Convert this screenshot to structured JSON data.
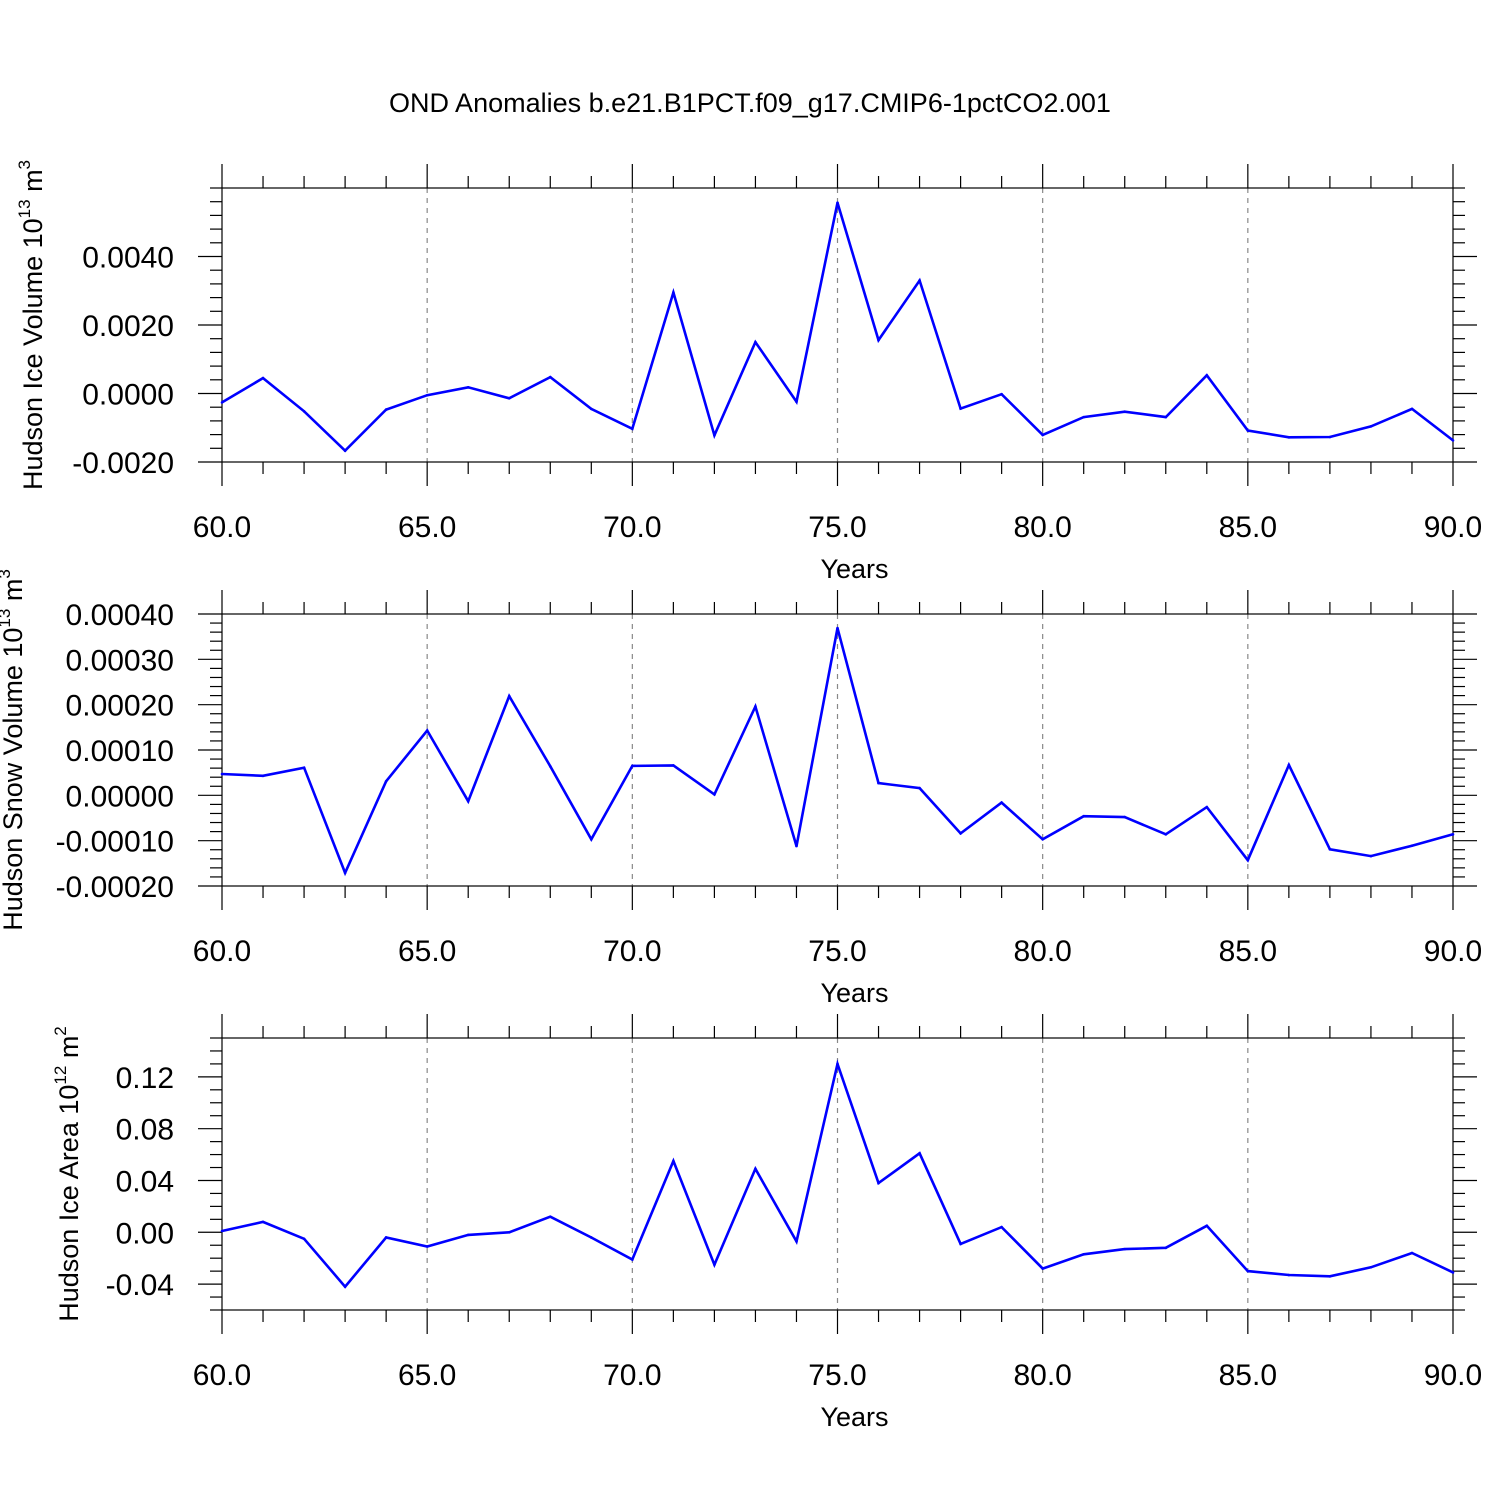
{
  "title": "OND Anomalies b.e21.B1PCT.f09_g17.CMIP6-1pctCO2.001",
  "line_color": "#0000ff",
  "axis_color": "#000000",
  "grid_color": "#888888",
  "chart_data": [
    {
      "type": "line",
      "ylabel": "Hudson Ice Volume",
      "ylabel_unit": {
        "base": "10",
        "exp": "13",
        "unit": "m",
        "unit_exp": "3"
      },
      "xlabel": "Years",
      "xlim": [
        60,
        90
      ],
      "ylim": [
        -0.002,
        0.006
      ],
      "xticks": [
        60,
        65,
        70,
        75,
        80,
        85,
        90
      ],
      "xtick_labels": [
        "60.0",
        "65.0",
        "70.0",
        "75.0",
        "80.0",
        "85.0",
        "90.0"
      ],
      "yticks": [
        -0.002,
        0.0,
        0.002,
        0.004
      ],
      "ytick_labels": [
        "-0.0020",
        "0.0000",
        "0.0020",
        "0.0040"
      ],
      "yminor_step": 0.0004,
      "grid": "vertical dashed at labeled x ticks",
      "x": [
        60,
        61,
        62,
        63,
        64,
        65,
        66,
        67,
        68,
        69,
        70,
        71,
        72,
        73,
        74,
        75,
        76,
        77,
        78,
        79,
        80,
        81,
        82,
        83,
        84,
        85,
        86,
        87,
        88,
        89,
        90
      ],
      "y": [
        -0.00026,
        0.00045,
        -0.00052,
        -0.00167,
        -0.00047,
        -5e-05,
        0.00018,
        -0.00014,
        0.00048,
        -0.00045,
        -0.00103,
        0.00295,
        -0.00122,
        0.0015,
        -0.00024,
        0.00557,
        0.00156,
        0.0033,
        -0.00044,
        -2e-05,
        -0.00121,
        -0.00069,
        -0.00053,
        -0.00069,
        0.00053,
        -0.00108,
        -0.00128,
        -0.00127,
        -0.00096,
        -0.00045,
        -0.00137
      ]
    },
    {
      "type": "line",
      "ylabel": "Hudson Snow Volume",
      "ylabel_unit": {
        "base": "10",
        "exp": "13",
        "unit": "m",
        "unit_exp": "3"
      },
      "xlabel": "Years",
      "xlim": [
        60,
        90
      ],
      "ylim": [
        -0.0002,
        0.0004
      ],
      "xticks": [
        60,
        65,
        70,
        75,
        80,
        85,
        90
      ],
      "xtick_labels": [
        "60.0",
        "65.0",
        "70.0",
        "75.0",
        "80.0",
        "85.0",
        "90.0"
      ],
      "yticks": [
        -0.0002,
        -0.0001,
        0.0,
        0.0001,
        0.0002,
        0.0003,
        0.0004
      ],
      "ytick_labels": [
        "-0.00020",
        "-0.00010",
        "0.00000",
        "0.00010",
        "0.00020",
        "0.00030",
        "0.00040"
      ],
      "yminor_step": 2e-05,
      "grid": "vertical dashed at labeled x ticks",
      "x": [
        60,
        61,
        62,
        63,
        64,
        65,
        66,
        67,
        68,
        69,
        70,
        71,
        72,
        73,
        74,
        75,
        76,
        77,
        78,
        79,
        80,
        81,
        82,
        83,
        84,
        85,
        86,
        87,
        88,
        89,
        90
      ],
      "y": [
        4.7e-05,
        4.3e-05,
        6.1e-05,
        -0.000171,
        3.1e-05,
        0.000143,
        -1.3e-05,
        0.000219,
        6.4e-05,
        -9.7e-05,
        6.5e-05,
        6.6e-05,
        2e-06,
        0.000196,
        -0.000112,
        0.000369,
        2.7e-05,
        1.6e-05,
        -8.4e-05,
        -1.6e-05,
        -9.7e-05,
        -4.6e-05,
        -4.8e-05,
        -8.6e-05,
        -2.6e-05,
        -0.000143,
        6.7e-05,
        -0.000119,
        -0.000134,
        -0.000111,
        -8.6e-05
      ]
    },
    {
      "type": "line",
      "ylabel": "Hudson Ice Area",
      "ylabel_unit": {
        "base": "10",
        "exp": "12",
        "unit": "m",
        "unit_exp": "2"
      },
      "xlabel": "Years",
      "xlim": [
        60,
        90
      ],
      "ylim": [
        -0.06,
        0.15
      ],
      "xticks": [
        60,
        65,
        70,
        75,
        80,
        85,
        90
      ],
      "xtick_labels": [
        "60.0",
        "65.0",
        "70.0",
        "75.0",
        "80.0",
        "85.0",
        "90.0"
      ],
      "yticks": [
        -0.04,
        0.0,
        0.04,
        0.08,
        0.12
      ],
      "ytick_labels": [
        "-0.04",
        "0.00",
        "0.04",
        "0.08",
        "0.12"
      ],
      "yminor_step": 0.01,
      "grid": "vertical dashed at labeled x ticks",
      "x": [
        60,
        61,
        62,
        63,
        64,
        65,
        66,
        67,
        68,
        69,
        70,
        71,
        72,
        73,
        74,
        75,
        76,
        77,
        78,
        79,
        80,
        81,
        82,
        83,
        84,
        85,
        86,
        87,
        88,
        89,
        90
      ],
      "y": [
        0.001,
        0.008,
        -0.005,
        -0.042,
        -0.004,
        -0.011,
        -0.002,
        0.0,
        0.012,
        -0.004,
        -0.021,
        0.055,
        -0.025,
        0.049,
        -0.007,
        0.13,
        0.038,
        0.061,
        -0.009,
        0.004,
        -0.028,
        -0.017,
        -0.013,
        -0.012,
        0.005,
        -0.03,
        -0.033,
        -0.034,
        -0.027,
        -0.016,
        -0.031
      ]
    }
  ]
}
